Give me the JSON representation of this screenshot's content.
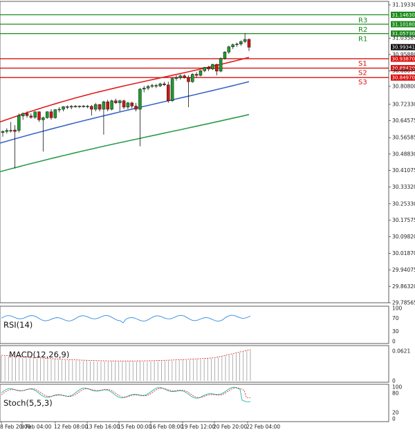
{
  "chart_data": {
    "type": "candlestick",
    "price_axis_labels": [
      "31.19330",
      "31.03585",
      "30.95880",
      "30.88075",
      "30.80800",
      "30.72330",
      "30.64575",
      "30.56585",
      "30.48830",
      "30.41075",
      "30.33320",
      "30.25330",
      "30.17575",
      "30.09820",
      "30.01870",
      "29.94075",
      "29.86320",
      "29.78565"
    ],
    "price_axis_range": [
      29.78565,
      31.1933
    ],
    "x_labels": [
      "8 Feb 20:00",
      "9 Feb 04:00",
      "12 Feb 08:00",
      "13 Feb 16:00",
      "15 Feb 00:00",
      "16 Feb 08:00",
      "19 Feb 12:00",
      "20 Feb 20:00",
      "22 Feb 04:00"
    ],
    "levels": [
      {
        "name": "R3",
        "value": 31.1463,
        "label": "31.14630",
        "color": "#1a8a1a"
      },
      {
        "name": "R2",
        "value": 31.1018,
        "label": "31.10180",
        "color": "#1a8a1a"
      },
      {
        "name": "R1",
        "value": 31.0573,
        "label": "31.05730",
        "color": "#1a8a1a"
      },
      {
        "name": "S1",
        "value": 30.9387,
        "label": "30.93870",
        "color": "#d91111"
      },
      {
        "name": "S2",
        "value": 30.8942,
        "label": "30.89420",
        "color": "#d91111"
      },
      {
        "name": "S3",
        "value": 30.8497,
        "label": "30.84970",
        "color": "#d91111"
      }
    ],
    "current_price": {
      "label": "30.99341",
      "value": 30.99341
    },
    "candles": [
      {
        "o": 30.59,
        "h": 30.6,
        "l": 30.57,
        "c": 30.595
      },
      {
        "o": 30.595,
        "h": 30.61,
        "l": 30.585,
        "c": 30.6
      },
      {
        "o": 30.598,
        "h": 30.64,
        "l": 30.59,
        "c": 30.6
      },
      {
        "o": 30.602,
        "h": 30.625,
        "l": 30.42,
        "c": 30.595
      },
      {
        "o": 30.6,
        "h": 30.68,
        "l": 30.59,
        "c": 30.67
      },
      {
        "o": 30.668,
        "h": 30.685,
        "l": 30.65,
        "c": 30.68
      },
      {
        "o": 30.68,
        "h": 30.69,
        "l": 30.66,
        "c": 30.67
      },
      {
        "o": 30.668,
        "h": 30.68,
        "l": 30.655,
        "c": 30.662
      },
      {
        "o": 30.662,
        "h": 30.69,
        "l": 30.655,
        "c": 30.688
      },
      {
        "o": 30.688,
        "h": 30.69,
        "l": 30.64,
        "c": 30.65
      },
      {
        "o": 30.65,
        "h": 30.665,
        "l": 30.5,
        "c": 30.66
      },
      {
        "o": 30.66,
        "h": 30.69,
        "l": 30.655,
        "c": 30.688
      },
      {
        "o": 30.688,
        "h": 30.7,
        "l": 30.65,
        "c": 30.66
      },
      {
        "o": 30.66,
        "h": 30.7,
        "l": 30.655,
        "c": 30.698
      },
      {
        "o": 30.698,
        "h": 30.71,
        "l": 30.685,
        "c": 30.7
      },
      {
        "o": 30.7,
        "h": 30.715,
        "l": 30.69,
        "c": 30.712
      },
      {
        "o": 30.712,
        "h": 30.718,
        "l": 30.7,
        "c": 30.71
      },
      {
        "o": 30.71,
        "h": 30.72,
        "l": 30.7,
        "c": 30.714
      },
      {
        "o": 30.714,
        "h": 30.72,
        "l": 30.708,
        "c": 30.712
      },
      {
        "o": 30.712,
        "h": 30.718,
        "l": 30.705,
        "c": 30.715
      },
      {
        "o": 30.715,
        "h": 30.72,
        "l": 30.708,
        "c": 30.712
      },
      {
        "o": 30.712,
        "h": 30.72,
        "l": 30.705,
        "c": 30.714
      },
      {
        "o": 30.714,
        "h": 30.72,
        "l": 30.67,
        "c": 30.7
      },
      {
        "o": 30.7,
        "h": 30.73,
        "l": 30.69,
        "c": 30.722
      },
      {
        "o": 30.722,
        "h": 30.725,
        "l": 30.69,
        "c": 30.7
      },
      {
        "o": 30.7,
        "h": 30.74,
        "l": 30.58,
        "c": 30.735
      },
      {
        "o": 30.735,
        "h": 30.745,
        "l": 30.69,
        "c": 30.7
      },
      {
        "o": 30.7,
        "h": 30.745,
        "l": 30.695,
        "c": 30.74
      },
      {
        "o": 30.74,
        "h": 30.75,
        "l": 30.725,
        "c": 30.73
      },
      {
        "o": 30.73,
        "h": 30.745,
        "l": 30.69,
        "c": 30.74
      },
      {
        "o": 30.74,
        "h": 30.745,
        "l": 30.7,
        "c": 30.71
      },
      {
        "o": 30.71,
        "h": 30.735,
        "l": 30.7,
        "c": 30.73
      },
      {
        "o": 30.73,
        "h": 30.735,
        "l": 30.705,
        "c": 30.715
      },
      {
        "o": 30.715,
        "h": 30.73,
        "l": 30.69,
        "c": 30.7
      },
      {
        "o": 30.7,
        "h": 30.8,
        "l": 30.525,
        "c": 30.795
      },
      {
        "o": 30.795,
        "h": 30.81,
        "l": 30.78,
        "c": 30.8
      },
      {
        "o": 30.8,
        "h": 30.815,
        "l": 30.79,
        "c": 30.808
      },
      {
        "o": 30.808,
        "h": 30.82,
        "l": 30.8,
        "c": 30.812
      },
      {
        "o": 30.812,
        "h": 30.82,
        "l": 30.8,
        "c": 30.81
      },
      {
        "o": 30.81,
        "h": 30.825,
        "l": 30.805,
        "c": 30.82
      },
      {
        "o": 30.82,
        "h": 30.83,
        "l": 30.81,
        "c": 30.815
      },
      {
        "o": 30.815,
        "h": 30.83,
        "l": 30.73,
        "c": 30.74
      },
      {
        "o": 30.74,
        "h": 30.85,
        "l": 30.735,
        "c": 30.845
      },
      {
        "o": 30.845,
        "h": 30.86,
        "l": 30.835,
        "c": 30.85
      },
      {
        "o": 30.85,
        "h": 30.865,
        "l": 30.84,
        "c": 30.858
      },
      {
        "o": 30.858,
        "h": 30.865,
        "l": 30.845,
        "c": 30.85
      },
      {
        "o": 30.85,
        "h": 30.86,
        "l": 30.71,
        "c": 30.83
      },
      {
        "o": 30.83,
        "h": 30.87,
        "l": 30.825,
        "c": 30.865
      },
      {
        "o": 30.865,
        "h": 30.875,
        "l": 30.85,
        "c": 30.86
      },
      {
        "o": 30.86,
        "h": 30.885,
        "l": 30.855,
        "c": 30.882
      },
      {
        "o": 30.882,
        "h": 30.9,
        "l": 30.875,
        "c": 30.898
      },
      {
        "o": 30.898,
        "h": 30.905,
        "l": 30.88,
        "c": 30.89
      },
      {
        "o": 30.89,
        "h": 30.915,
        "l": 30.885,
        "c": 30.912
      },
      {
        "o": 30.912,
        "h": 30.915,
        "l": 30.86,
        "c": 30.88
      },
      {
        "o": 30.88,
        "h": 30.945,
        "l": 30.875,
        "c": 30.94
      },
      {
        "o": 30.94,
        "h": 30.975,
        "l": 30.935,
        "c": 30.97
      },
      {
        "o": 30.97,
        "h": 31.0,
        "l": 30.962,
        "c": 30.995
      },
      {
        "o": 30.995,
        "h": 31.01,
        "l": 30.985,
        "c": 31.005
      },
      {
        "o": 31.005,
        "h": 31.015,
        "l": 30.995,
        "c": 31.008
      },
      {
        "o": 31.008,
        "h": 31.025,
        "l": 31.0,
        "c": 31.02
      },
      {
        "o": 31.02,
        "h": 31.06,
        "l": 31.012,
        "c": 31.03
      },
      {
        "o": 31.03,
        "h": 31.035,
        "l": 30.975,
        "c": 30.993
      }
    ],
    "moving_averages": [
      {
        "color": "#e01b1b",
        "start": 30.64,
        "end": 30.945
      },
      {
        "color": "#3a63c9",
        "start": 30.54,
        "end": 30.83
      },
      {
        "color": "#2a9a4a",
        "start": 30.405,
        "end": 30.675
      }
    ],
    "indicators": {
      "rsi": {
        "label": "RSI(14)",
        "levels": [
          "100",
          "70",
          "30",
          "0"
        ]
      },
      "macd": {
        "label": "MACD(12,26,9)",
        "levels": [
          "0.0621",
          "0"
        ]
      },
      "stoch": {
        "label": "Stoch(5,5,3)",
        "levels": [
          "100",
          "80",
          "20",
          "0"
        ]
      }
    }
  }
}
